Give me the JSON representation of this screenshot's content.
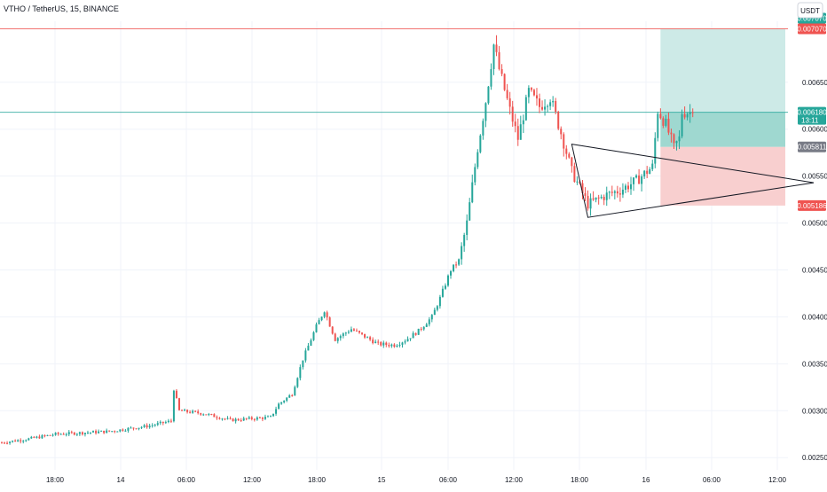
{
  "header": {
    "title": "VTHO / TetherUS, 15, BINANCE"
  },
  "currency_button": {
    "label": "USDT"
  },
  "colors": {
    "up": "#26a69a",
    "down": "#ef5350",
    "grid": "#f0f3fa",
    "stop_zone": "#f8cfcf",
    "target_zone": "#cdeae7",
    "target_zone_strong": "#9fd8d0",
    "price_line": "#26a69a",
    "resistance_line": "#ef5350",
    "triangle": "#131722"
  },
  "chart_data": {
    "type": "candlestick",
    "title": "VTHO / TetherUS, 15, BINANCE",
    "currency": "USDT",
    "y_ticks": [
      "0.002500",
      "0.003000",
      "0.003500",
      "0.004000",
      "0.004500",
      "0.005000",
      "0.005500",
      "0.006000",
      "0.006500"
    ],
    "ylim": [
      0.00237,
      0.00715
    ],
    "x_ticks": [
      "18:00",
      "14",
      "06:00",
      "12:00",
      "18:00",
      "15",
      "06:00",
      "12:00",
      "18:00",
      "16",
      "06:00",
      "12:00"
    ],
    "grid": true,
    "price_tags": [
      {
        "label": "0.007070",
        "value": 0.00707,
        "color": "#26a69a"
      },
      {
        "label": "0.007070",
        "value": 0.00707,
        "color": "#ef5350"
      },
      {
        "label": "0.006180",
        "value": 0.00618,
        "color": "#26a69a",
        "sub": "13:11"
      },
      {
        "label": "0.005811",
        "value": 0.005811,
        "color": "#787b86"
      },
      {
        "label": "0.005186",
        "value": 0.005186,
        "color": "#ef5350"
      }
    ],
    "horizontal_lines": [
      {
        "value": 0.00707,
        "color": "#ef5350"
      },
      {
        "value": 0.00618,
        "color": "#26a69a"
      }
    ],
    "position": {
      "entry": 0.005811,
      "target": 0.00707,
      "stop": 0.005186,
      "start_bar": 245,
      "end_bar": 300
    },
    "triangle_pattern": {
      "upper": [
        [
          212,
          0.00584
        ],
        [
          282,
          0.00543
        ]
      ],
      "lower": [
        [
          218,
          0.00506
        ],
        [
          282,
          0.00543
        ]
      ]
    },
    "candles": {
      "count": 258,
      "anchors": [
        [
          0,
          0.00266
        ],
        [
          10,
          0.0027
        ],
        [
          20,
          0.00275
        ],
        [
          40,
          0.00278
        ],
        [
          55,
          0.00284
        ],
        [
          63,
          0.00289
        ],
        [
          64,
          0.00323
        ],
        [
          66,
          0.003
        ],
        [
          75,
          0.00297
        ],
        [
          85,
          0.0029
        ],
        [
          100,
          0.00293
        ],
        [
          103,
          0.00307
        ],
        [
          108,
          0.00318
        ],
        [
          112,
          0.00355
        ],
        [
          117,
          0.0039
        ],
        [
          120,
          0.00407
        ],
        [
          124,
          0.00376
        ],
        [
          130,
          0.00387
        ],
        [
          140,
          0.00371
        ],
        [
          146,
          0.0037
        ],
        [
          150,
          0.00375
        ],
        [
          155,
          0.00385
        ],
        [
          160,
          0.004
        ],
        [
          163,
          0.0042
        ],
        [
          167,
          0.0045
        ],
        [
          170,
          0.0046
        ],
        [
          173,
          0.005
        ],
        [
          177,
          0.0058
        ],
        [
          180,
          0.0063
        ],
        [
          183,
          0.0069
        ],
        [
          185,
          0.00664
        ],
        [
          189,
          0.0062
        ],
        [
          192,
          0.0059
        ],
        [
          196,
          0.0064
        ],
        [
          200,
          0.00624
        ],
        [
          204,
          0.00634
        ],
        [
          208,
          0.00596
        ],
        [
          212,
          0.00555
        ],
        [
          218,
          0.0052
        ],
        [
          225,
          0.0053
        ],
        [
          230,
          0.00535
        ],
        [
          236,
          0.00545
        ],
        [
          242,
          0.0056
        ],
        [
          244,
          0.0062
        ],
        [
          247,
          0.00605
        ],
        [
          250,
          0.0058
        ],
        [
          252,
          0.0059
        ],
        [
          253,
          0.00618
        ]
      ]
    }
  }
}
